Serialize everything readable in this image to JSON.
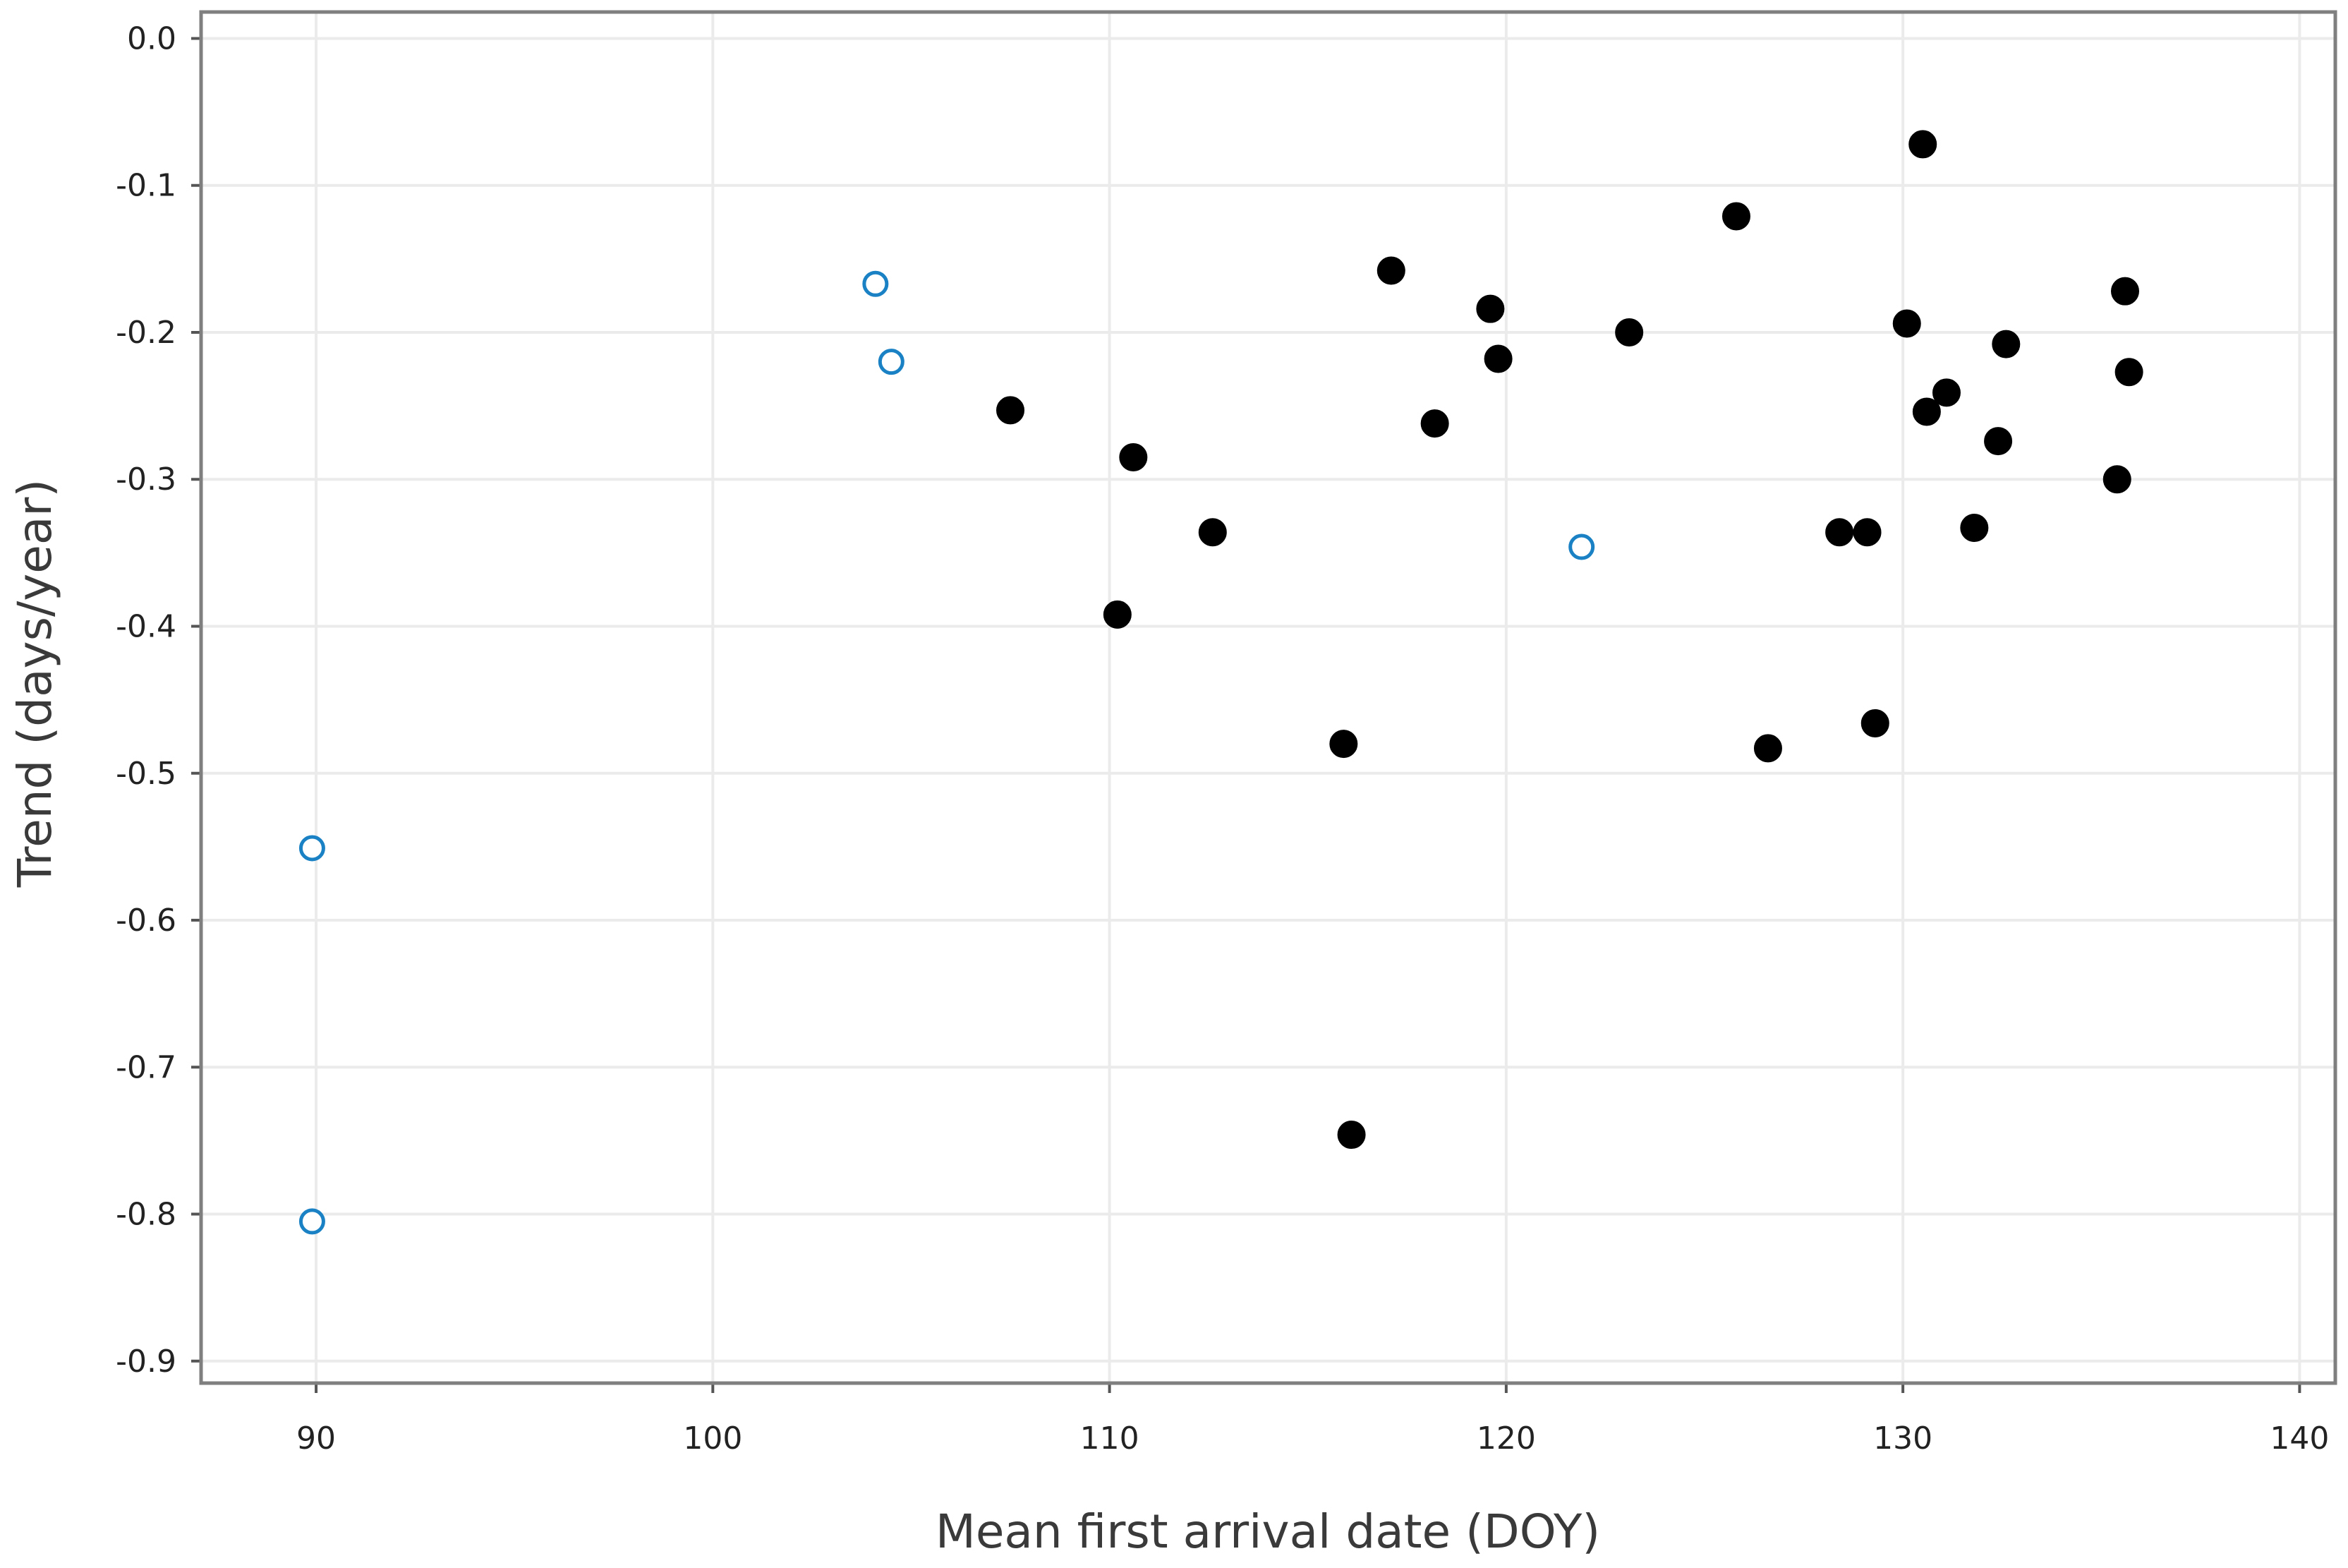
{
  "chart_data": {
    "type": "scatter",
    "title": "",
    "xlabel": "Mean first arrival date (DOY)",
    "ylabel": "Trend (days/year)",
    "xlim": [
      87.1,
      140.9
    ],
    "ylim": [
      -0.915,
      0.018
    ],
    "xticks": [
      90,
      100,
      110,
      120,
      130,
      140
    ],
    "xtick_labels": [
      "90",
      "100",
      "110",
      "120",
      "130",
      "140"
    ],
    "yticks": [
      0.0,
      -0.1,
      -0.2,
      -0.3,
      -0.4,
      -0.5,
      -0.6,
      -0.7,
      -0.8,
      -0.9
    ],
    "ytick_labels": [
      "0.0",
      "-0.1",
      "-0.2",
      "-0.3",
      "-0.4",
      "-0.5",
      "-0.6",
      "-0.7",
      "-0.8",
      "-0.9"
    ],
    "grid": true,
    "legend": "none",
    "series": [
      {
        "name": "filled",
        "marker": "filled-circle",
        "color": "#000000",
        "points": [
          {
            "x": 107.5,
            "y": -0.253
          },
          {
            "x": 110.6,
            "y": -0.285
          },
          {
            "x": 110.2,
            "y": -0.392
          },
          {
            "x": 112.6,
            "y": -0.336
          },
          {
            "x": 115.9,
            "y": -0.48
          },
          {
            "x": 116.1,
            "y": -0.746
          },
          {
            "x": 117.1,
            "y": -0.158
          },
          {
            "x": 118.2,
            "y": -0.262
          },
          {
            "x": 119.6,
            "y": -0.184
          },
          {
            "x": 119.8,
            "y": -0.218
          },
          {
            "x": 123.1,
            "y": -0.2
          },
          {
            "x": 125.8,
            "y": -0.121
          },
          {
            "x": 126.6,
            "y": -0.483
          },
          {
            "x": 128.4,
            "y": -0.336
          },
          {
            "x": 129.1,
            "y": -0.336
          },
          {
            "x": 129.3,
            "y": -0.466
          },
          {
            "x": 130.1,
            "y": -0.194
          },
          {
            "x": 130.5,
            "y": -0.072
          },
          {
            "x": 130.6,
            "y": -0.254
          },
          {
            "x": 131.1,
            "y": -0.241
          },
          {
            "x": 131.8,
            "y": -0.333
          },
          {
            "x": 132.4,
            "y": -0.274
          },
          {
            "x": 132.6,
            "y": -0.208
          },
          {
            "x": 135.4,
            "y": -0.3
          },
          {
            "x": 135.6,
            "y": -0.172
          },
          {
            "x": 135.7,
            "y": -0.227
          }
        ]
      },
      {
        "name": "open",
        "marker": "open-circle",
        "color": "#1a82c4",
        "points": [
          {
            "x": 89.9,
            "y": -0.551
          },
          {
            "x": 89.9,
            "y": -0.805
          },
          {
            "x": 104.1,
            "y": -0.167
          },
          {
            "x": 104.5,
            "y": -0.22
          },
          {
            "x": 121.9,
            "y": -0.346
          }
        ]
      }
    ]
  }
}
